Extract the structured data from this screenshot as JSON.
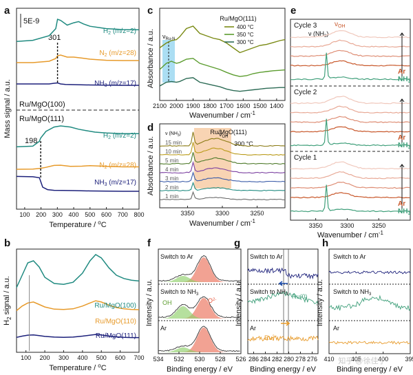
{
  "colors": {
    "teal": "#1f8a80",
    "orange": "#e79a2a",
    "navy": "#1b1f7a",
    "olive": "#7a8a14",
    "green": "#5b9c2e",
    "darkgreen": "#2c6b55",
    "rust": "#c8572a",
    "pink": "#e8b0a0",
    "mint": "#3f9f7a",
    "shade_blue": "#8fd3ef",
    "shade_orange": "#f6c9a0",
    "peak_red": "#e8553a",
    "peak_green": "#8fcf6a"
  },
  "chart_data": [
    {
      "panel": "a",
      "type": "line",
      "xlabel": "Temperature / °C",
      "ylabel": "Mass signal / a.u.",
      "xlim": [
        50,
        800
      ],
      "xticks": [
        "100",
        "200",
        "300",
        "400",
        "500",
        "600",
        "700",
        "800"
      ],
      "scale_label": "5E-9",
      "annotations": [
        "301",
        "198"
      ],
      "groups": [
        {
          "label": "Ru/MgO(100)",
          "series": [
            {
              "name": "H2 (m/z=2)",
              "x": [
                50,
                150,
                250,
                290,
                301,
                320,
                360,
                400,
                430,
                460,
                500,
                550,
                600,
                650,
                700,
                750,
                800
              ],
              "y": [
                0.05,
                0.1,
                0.3,
                0.6,
                1.0,
                0.95,
                0.75,
                0.85,
                0.9,
                0.8,
                0.7,
                0.65,
                0.6,
                0.58,
                0.56,
                0.55,
                0.55
              ]
            },
            {
              "name": "N2 (m/z=28)",
              "x": [
                50,
                150,
                250,
                290,
                301,
                320,
                360,
                400,
                450,
                500,
                600,
                700,
                800
              ],
              "y": [
                0.05,
                0.05,
                0.15,
                0.35,
                0.55,
                0.6,
                0.45,
                0.45,
                0.38,
                0.3,
                0.22,
                0.2,
                0.2
              ]
            },
            {
              "name": "NH3 (m/z=17)",
              "x": [
                50,
                150,
                250,
                280,
                301,
                320,
                350,
                400,
                500,
                600,
                700,
                800
              ],
              "y": [
                0.2,
                0.2,
                0.2,
                0.3,
                0.35,
                0.2,
                0.12,
                0.1,
                0.05,
                0.02,
                0.0,
                0.0
              ]
            }
          ]
        },
        {
          "label": "Ru/MgO(111)",
          "series": [
            {
              "name": "H2 (m/z=2)",
              "x": [
                50,
                150,
                190,
                198,
                230,
                280,
                320,
                380,
                430,
                480,
                530,
                600,
                700,
                800
              ],
              "y": [
                0.05,
                0.08,
                0.3,
                0.45,
                0.75,
                0.95,
                1.0,
                0.95,
                0.85,
                0.78,
                0.72,
                0.68,
                0.65,
                0.65
              ]
            },
            {
              "name": "N2 (m/z=28)",
              "x": [
                50,
                150,
                198,
                230,
                280,
                320,
                380,
                450,
                500,
                600,
                700,
                800
              ],
              "y": [
                0.0,
                0.02,
                0.1,
                0.2,
                0.4,
                0.42,
                0.3,
                0.32,
                0.38,
                0.3,
                0.25,
                0.25
              ]
            },
            {
              "name": "NH3 (m/z=17)",
              "x": [
                50,
                150,
                190,
                198,
                210,
                240,
                280,
                330,
                400,
                500,
                600,
                700,
                800
              ],
              "y": [
                0.9,
                0.88,
                0.82,
                0.6,
                0.25,
                0.1,
                0.06,
                0.05,
                0.04,
                0.02,
                0.01,
                0.0,
                0.0
              ]
            }
          ]
        }
      ]
    },
    {
      "panel": "b",
      "type": "line",
      "xlabel": "Temperature / °C",
      "ylabel": "H2 signal / a.u.",
      "xlim": [
        50,
        700
      ],
      "xticks": [
        "100",
        "200",
        "300",
        "400",
        "500",
        "600",
        "700"
      ],
      "series": [
        {
          "name": "Ru/MgO(100)",
          "x": [
            50,
            80,
            110,
            140,
            170,
            200,
            250,
            300,
            350,
            400,
            440,
            470,
            500,
            540,
            580,
            620,
            660,
            700
          ],
          "y": [
            0.2,
            0.5,
            0.8,
            0.85,
            0.7,
            0.45,
            0.3,
            0.28,
            0.33,
            0.55,
            0.85,
            1.0,
            0.92,
            0.68,
            0.5,
            0.42,
            0.38,
            0.36
          ]
        },
        {
          "name": "Ru/MgO(110)",
          "x": [
            50,
            80,
            110,
            140,
            170,
            200,
            250,
            300,
            350,
            400,
            440,
            470,
            500,
            540,
            580,
            620,
            660,
            700
          ],
          "y": [
            0.1,
            0.25,
            0.35,
            0.38,
            0.3,
            0.22,
            0.15,
            0.14,
            0.16,
            0.25,
            0.35,
            0.42,
            0.38,
            0.28,
            0.2,
            0.16,
            0.14,
            0.13
          ]
        },
        {
          "name": "Ru/MgO(111)",
          "x": [
            50,
            80,
            110,
            140,
            170,
            200,
            250,
            300,
            350,
            400,
            440,
            470,
            500,
            540,
            580,
            620,
            660,
            700
          ],
          "y": [
            0.05,
            0.1,
            0.14,
            0.15,
            0.12,
            0.09,
            0.06,
            0.05,
            0.06,
            0.1,
            0.14,
            0.17,
            0.15,
            0.1,
            0.07,
            0.05,
            0.04,
            0.04
          ]
        }
      ]
    },
    {
      "panel": "c",
      "type": "line",
      "title": "Ru/MgO(111)",
      "xlabel": "Wavenumber / cm⁻¹",
      "ylabel": "Absorbance / a.u.",
      "xlim": [
        2100,
        1350
      ],
      "xticks": [
        "2100",
        "2000",
        "1900",
        "1800",
        "1700",
        "1600",
        "1500",
        "1400"
      ],
      "band_label": "νRu-N",
      "series": [
        {
          "name": "400 °C",
          "x": [
            2100,
            2060,
            2030,
            2000,
            1980,
            1940,
            1900,
            1860,
            1820,
            1780,
            1740,
            1700,
            1660,
            1620,
            1580,
            1540,
            1500,
            1460,
            1420,
            1380,
            1350
          ],
          "y": [
            0.55,
            0.65,
            0.7,
            0.72,
            0.78,
            0.95,
            1.0,
            0.85,
            0.8,
            0.75,
            0.72,
            0.65,
            0.55,
            0.45,
            0.5,
            0.55,
            0.6,
            0.62,
            0.66,
            0.7,
            0.72
          ]
        },
        {
          "name": "350 °C",
          "x": [
            2100,
            2060,
            2030,
            2000,
            1980,
            1940,
            1900,
            1860,
            1820,
            1780,
            1740,
            1700,
            1660,
            1620,
            1580,
            1540,
            1500,
            1460,
            1420,
            1380,
            1350
          ],
          "y": [
            0.35,
            0.5,
            0.55,
            0.5,
            0.52,
            0.6,
            0.62,
            0.5,
            0.45,
            0.4,
            0.35,
            0.28,
            0.22,
            0.18,
            0.2,
            0.25,
            0.28,
            0.3,
            0.32,
            0.33,
            0.34
          ]
        },
        {
          "name": "300 °C",
          "x": [
            2100,
            2060,
            2030,
            2000,
            1980,
            1940,
            1900,
            1860,
            1820,
            1780,
            1740,
            1700,
            1660,
            1620,
            1580,
            1540,
            1500,
            1460,
            1420,
            1380,
            1350
          ],
          "y": [
            0.2,
            0.3,
            0.32,
            0.3,
            0.32,
            0.4,
            0.42,
            0.3,
            0.26,
            0.22,
            0.18,
            0.12,
            0.08,
            0.06,
            0.08,
            0.1,
            0.12,
            0.14,
            0.15,
            0.16,
            0.16
          ]
        }
      ]
    },
    {
      "panel": "d",
      "type": "line",
      "title": "Ru/MgO(111)",
      "subtitle": "300 °C",
      "xlabel": "Wavenumber / cm⁻¹",
      "ylabel": "Absorbance / a.u.",
      "xlim": [
        3390,
        3210
      ],
      "xticks": [
        "3350",
        "3300",
        "3250"
      ],
      "band_labels": [
        "ν (NH3)",
        "νOH"
      ],
      "series": [
        {
          "name": "1 min"
        },
        {
          "name": "2 min"
        },
        {
          "name": "3 min"
        },
        {
          "name": "4 min"
        },
        {
          "name": "5 min"
        },
        {
          "name": "10 min"
        },
        {
          "name": "15 min"
        }
      ]
    },
    {
      "panel": "e",
      "type": "line",
      "xlabel": "Wavenumber / cm⁻¹",
      "xlim": [
        3390,
        3200
      ],
      "xticks": [
        "3350",
        "3300",
        "3250"
      ],
      "band_labels": [
        "ν (NH3)",
        "νOH"
      ],
      "cycles": [
        {
          "name": "Cycle 3",
          "labels": [
            "Ar",
            "NH3"
          ]
        },
        {
          "name": "Cycle 2",
          "labels": [
            "Ar",
            "NH3"
          ]
        },
        {
          "name": "Cycle 1",
          "labels": [
            "Ar",
            "NH3"
          ]
        }
      ]
    },
    {
      "panel": "f",
      "type": "line",
      "xlabel": "Binding energy / eV",
      "ylabel": "Intensity / a.u.",
      "xlim": [
        534,
        526
      ],
      "xticks": [
        "534",
        "532",
        "530",
        "528",
        "526"
      ],
      "rows": [
        "Switch to Ar",
        "Switch to NH3",
        "Ar"
      ],
      "peak_labels": [
        "OH",
        "O²⁻"
      ]
    },
    {
      "panel": "g",
      "type": "line",
      "xlabel": "Binding energy / eV",
      "ylabel": "Intensity / a.u.",
      "xlim": [
        287,
        275
      ],
      "xticks": [
        "286",
        "284",
        "282",
        "280",
        "278",
        "276"
      ],
      "rows": [
        "Switch to Ar",
        "Switch to NH3",
        "Ar"
      ],
      "peak_labels": [
        "Ru(0)",
        "Ru²⁺"
      ]
    },
    {
      "panel": "h",
      "type": "line",
      "xlabel": "Binding energy / eV",
      "ylabel": "Intensity / a.u.",
      "xlim": [
        410,
        395
      ],
      "xticks": [
        "410",
        "405",
        "400",
        "395"
      ],
      "rows": [
        "Switch to Ar",
        "Switch to NH3",
        "Ar"
      ]
    }
  ],
  "labels": {
    "a": "a",
    "b": "b",
    "c": "c",
    "d": "d",
    "e": "e",
    "f": "f",
    "g": "g",
    "h": "h",
    "a_mid_top": "Ru/MgO(100)",
    "a_mid_bot": "Ru/MgO(111)",
    "a_h2": "H",
    "a_h2_sub": "2",
    "a_h2_tail": " (m/z=2)",
    "a_n2": "N",
    "a_n2_sub": "2",
    "a_n2_tail": " (m/z=28)",
    "a_nh3": "NH",
    "a_nh3_sub": "3",
    "a_nh3_tail": " (m/z=17)",
    "a_xlabel_main": "Temperature / ",
    "a_xlabel_unit": "o",
    "a_xlabel_c": "C",
    "b_xlabel_main": "Temperature / ",
    "b_xlabel_unit": "o",
    "b_xlabel_c": "C",
    "b_ylabel_main": "H",
    "b_ylabel_sub": "2",
    "b_ylabel_tail": " signal / a.u.",
    "c_legend_title": "Ru/MgO(111)",
    "d_ylabel": "Absorbance / a.u.",
    "c_ylabel": "Absorbance / a.u.",
    "cd_xlabel_main": "Wavenumber / cm",
    "cd_xlabel_sup": "-1",
    "c_band_main": "ν",
    "c_band_sub": "Ru-N",
    "nu_main": "ν",
    "nu_nh3": " (NH",
    "nu_nh3_sub": "3",
    "nu_close": ")",
    "nu_oh_sub": "OH",
    "g_ru2_main": "Ru",
    "g_ru2_sup": "2+",
    "f_o2_main": "O",
    "f_o2_sup": "2-",
    "switch_nh3_main": "Switch to NH",
    "switch_nh3_sub": "3",
    "e_nh3_main": "NH",
    "e_nh3_sub": "3",
    "watermark": "知乎 @徐佳宁"
  }
}
